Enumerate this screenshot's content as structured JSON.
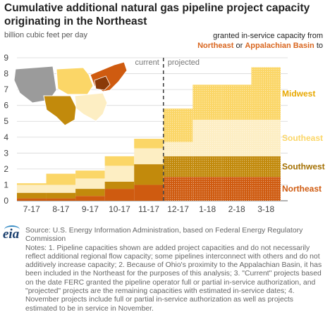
{
  "title": "Cumulative additional natural gas pipeline project capacity originating in the Northeast",
  "unit_label": "billion cubic feet per day",
  "legend_text": {
    "line1": "granted in-service capacity from",
    "northeast": "Northeast",
    "or": " or ",
    "appalachian": "Appalachian Basin",
    "to": " to"
  },
  "source": "Source: U.S. Energy Information Administration, based on Federal Energy Regulatory Commission",
  "notes": "Notes: 1. Pipeline capacities shown are added project capacities and do not necessarily reflect additional regional flow capacity; some pipelines interconnect with others and do not additively increase capacity; 2. Because of Ohio's proximity to the Appalachian Basin, it has been included in the Northeast for the purposes of this analysis; 3. \"Current\" projects based on the date FERC granted the pipeline operator full or partial in-service authorization, and \"projected\" projects are the remaining capacities with estimated in-service dates; 4. November projects include full or partial in-service authorization as well as projects estimated to be in service in November.",
  "logo_text": "eia",
  "chart_data": {
    "type": "bar",
    "stacked": true,
    "categories": [
      "7-17",
      "8-17",
      "9-17",
      "10-17",
      "11-17",
      "12-17",
      "1-18",
      "2-18",
      "3-18"
    ],
    "series": [
      {
        "name": "Northeast",
        "color": "#cf5b10",
        "values": [
          0.15,
          0.15,
          0.3,
          0.75,
          1.0,
          1.5,
          1.5,
          1.5,
          1.5
        ]
      },
      {
        "name": "Southwest",
        "color": "#c28a0c",
        "values": [
          0.35,
          0.35,
          0.45,
          0.45,
          1.3,
          1.3,
          1.3,
          1.3,
          1.3
        ]
      },
      {
        "name": "Southeast",
        "color": "#fdeec3",
        "values": [
          0.5,
          0.5,
          0.65,
          1.0,
          1.0,
          0.9,
          2.3,
          2.3,
          2.3
        ]
      },
      {
        "name": "Midwest",
        "color": "#fbd667",
        "values": [
          0.1,
          0.7,
          0.5,
          0.6,
          0.6,
          2.1,
          2.2,
          2.2,
          3.3
        ]
      }
    ],
    "ylim": [
      0,
      9
    ],
    "yticks": [
      0,
      1,
      2,
      3,
      4,
      5,
      6,
      7,
      8,
      9
    ],
    "period_labels": {
      "current": "current",
      "projected": "projected"
    },
    "projected_start_index": 5,
    "grid": true
  }
}
